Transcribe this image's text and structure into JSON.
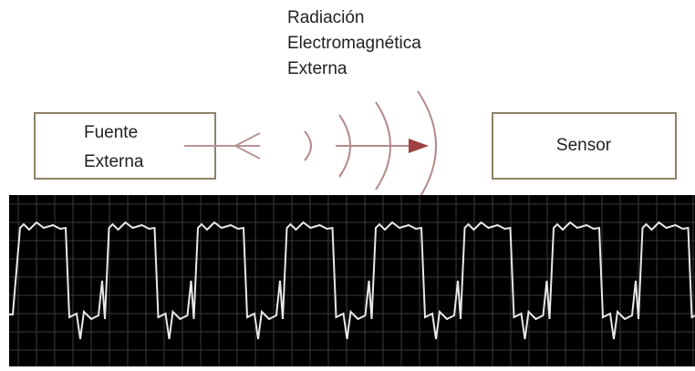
{
  "radiation_label": [
    "Radiación",
    "Electromagnética",
    "Externa"
  ],
  "nodes": [
    {
      "label": [
        "Fuente",
        "Externa"
      ]
    },
    {
      "label": [
        "Sensor"
      ]
    }
  ]
}
